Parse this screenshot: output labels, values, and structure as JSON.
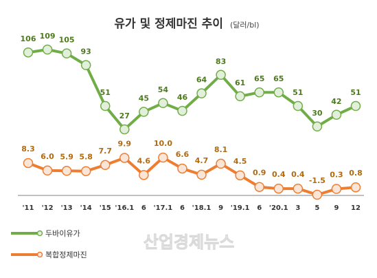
{
  "title": "유가 및 정제마진 추이",
  "unit": "(달러/bl)",
  "watermark": "산업경제뉴스",
  "colors": {
    "dubai_line": "#70ad47",
    "dubai_marker_fill": "#e2efda",
    "dubai_label": "#4e7a1e",
    "margin_line": "#ed7d31",
    "margin_marker_fill": "#fbe5d6",
    "margin_label": "#b26a10",
    "axis": "#7f7f7f"
  },
  "chart_data": {
    "type": "line",
    "categories": [
      "'11",
      "'12",
      "'13",
      "'14",
      "'15",
      "'16.1",
      "6",
      "'17.1",
      "6",
      "'18.1",
      "9",
      "'19.1",
      "6",
      "'20.1",
      "3",
      "5",
      "9",
      "12"
    ],
    "series": [
      {
        "name": "두바이유가",
        "values": [
          106,
          109,
          105,
          93,
          51,
          27,
          45,
          54,
          46,
          64,
          83,
          61,
          65,
          65,
          51,
          30,
          42,
          51
        ],
        "labels": [
          "106",
          "109",
          "105",
          "93",
          "51",
          "27",
          "45",
          "54",
          "46",
          "64",
          "83",
          "61",
          "65",
          "65",
          "51",
          "30",
          "42",
          "51"
        ]
      },
      {
        "name": "복합정제마진",
        "values": [
          8.3,
          6.0,
          5.9,
          5.8,
          7.7,
          9.9,
          4.6,
          10.0,
          6.6,
          4.7,
          8.1,
          4.5,
          0.9,
          0.4,
          0.4,
          -1.5,
          0.3,
          0.8
        ],
        "labels": [
          "8.3",
          "6.0",
          "5.9",
          "5.8",
          "7.7",
          "9.9",
          "4.6",
          "10.0",
          "6.6",
          "4.7",
          "8.1",
          "4.5",
          "0.9",
          "0.4",
          "0.4",
          "-1.5",
          "0.3",
          "0.8"
        ]
      }
    ],
    "legend_position": "bottom-left",
    "grid": false
  }
}
